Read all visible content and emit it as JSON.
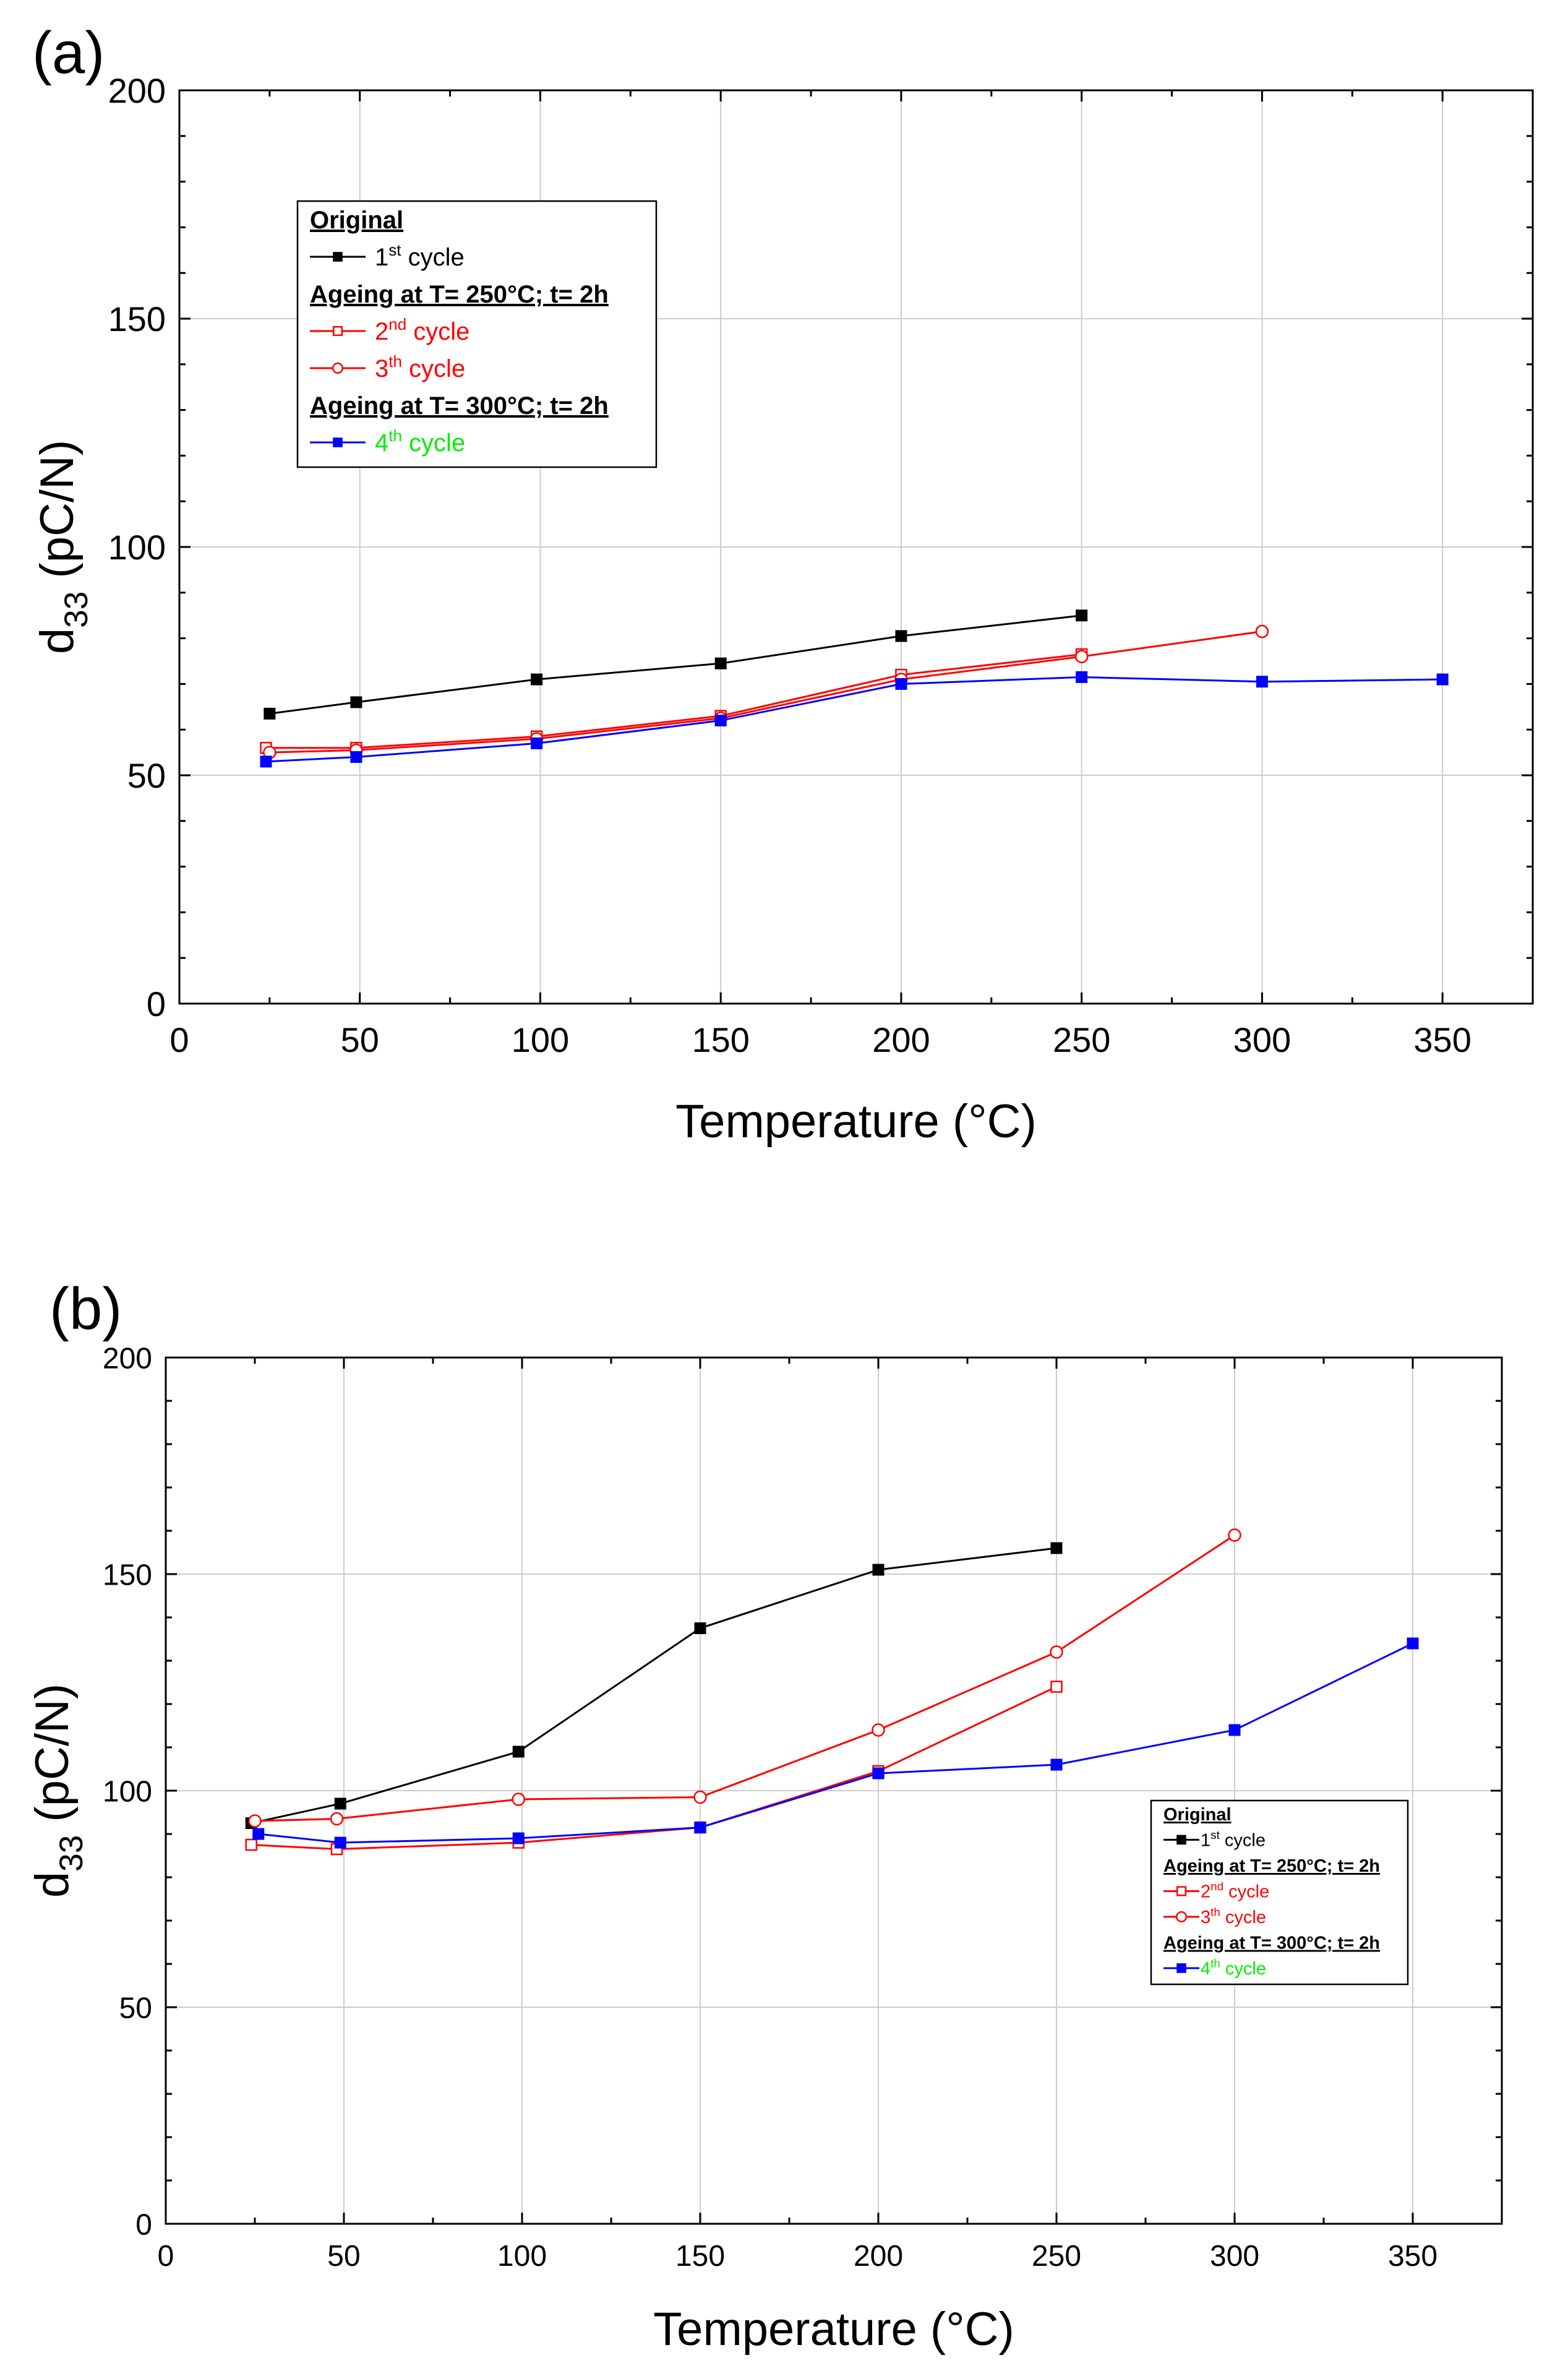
{
  "chart_data": [
    {
      "panel_label": "(a)",
      "type": "line",
      "xlabel": "Temperature (°C)",
      "ylabel": {
        "base": "d",
        "sub": "33",
        "rest": " (pC/N)"
      },
      "xlim": [
        0,
        375
      ],
      "ylim": [
        0,
        200
      ],
      "xticks": [
        0,
        50,
        100,
        150,
        200,
        250,
        300,
        350
      ],
      "yticks": [
        0,
        50,
        100,
        150,
        200
      ],
      "grid": true,
      "legend_position": "top-left",
      "legend": [
        {
          "heading": "Original"
        },
        {
          "series_index": 0,
          "label_main": "1",
          "label_sup": "st",
          "label_rest": " cycle"
        },
        {
          "heading": "Ageing at T= 250°C; t= 2h"
        },
        {
          "series_index": 1,
          "label_main": "2",
          "label_sup": "nd",
          "label_rest": " cycle"
        },
        {
          "series_index": 2,
          "label_main": "3",
          "label_sup": "th",
          "label_rest": " cycle"
        },
        {
          "heading": "Ageing at T= 300°C; t= 2h"
        },
        {
          "series_index": 3,
          "label_main": "4",
          "label_sup": "th",
          "label_rest": " cycle"
        }
      ],
      "series": [
        {
          "name": "1st cycle",
          "color": "#000000",
          "marker": "square-filled",
          "x": [
            25,
            49,
            99,
            150,
            200,
            250
          ],
          "y": [
            63.5,
            66,
            71,
            74.5,
            80.5,
            85
          ]
        },
        {
          "name": "2nd cycle",
          "color": "#ff0000",
          "marker": "square-open",
          "x": [
            24,
            49,
            99,
            150,
            200,
            250
          ],
          "y": [
            56,
            56,
            58.5,
            63,
            72,
            76.5
          ]
        },
        {
          "name": "3th cycle",
          "color": "#ff0000",
          "marker": "circle-open",
          "x": [
            25,
            49,
            99,
            150,
            200,
            250,
            300
          ],
          "y": [
            55,
            55.5,
            58,
            62.5,
            71,
            76,
            81.5
          ]
        },
        {
          "name": "4th cycle",
          "color": "#0000ff",
          "marker": "square-filled",
          "label_color": "#00ee00",
          "x": [
            24,
            49,
            99,
            150,
            200,
            250,
            300,
            350
          ],
          "y": [
            53,
            54,
            57,
            62,
            70,
            71.5,
            70.5,
            71
          ]
        }
      ]
    },
    {
      "panel_label": "(b)",
      "type": "line",
      "xlabel": "Temperature (°C)",
      "ylabel": {
        "base": "d",
        "sub": "33",
        "rest": " (pC/N)"
      },
      "xlim": [
        0,
        375
      ],
      "ylim": [
        0,
        200
      ],
      "xticks": [
        0,
        50,
        100,
        150,
        200,
        250,
        300,
        350
      ],
      "yticks": [
        0,
        50,
        100,
        150,
        200
      ],
      "grid": true,
      "legend_position": "center-right",
      "legend": [
        {
          "heading": "Original"
        },
        {
          "series_index": 0,
          "label_main": "1",
          "label_sup": "st",
          "label_rest": " cycle"
        },
        {
          "heading": "Ageing at T= 250°C; t= 2h"
        },
        {
          "series_index": 1,
          "label_main": "2",
          "label_sup": "nd",
          "label_rest": " cycle"
        },
        {
          "series_index": 2,
          "label_main": "3",
          "label_sup": "th",
          "label_rest": " cycle"
        },
        {
          "heading": "Ageing at T= 300°C; t= 2h"
        },
        {
          "series_index": 3,
          "label_main": "4",
          "label_sup": "th",
          "label_rest": " cycle"
        }
      ],
      "series": [
        {
          "name": "1st cycle",
          "color": "#000000",
          "marker": "square-filled",
          "x": [
            24,
            49,
            99,
            150,
            200,
            250
          ],
          "y": [
            92.5,
            97,
            109,
            137.5,
            151,
            156
          ]
        },
        {
          "name": "2nd cycle",
          "color": "#ff0000",
          "marker": "square-open",
          "x": [
            24,
            48,
            99,
            150,
            200,
            250
          ],
          "y": [
            87.5,
            86.5,
            88,
            91.5,
            104.5,
            124
          ]
        },
        {
          "name": "3th cycle",
          "color": "#ff0000",
          "marker": "circle-open",
          "x": [
            25,
            48,
            99,
            150,
            200,
            250,
            300
          ],
          "y": [
            93,
            93.5,
            98,
            98.5,
            114,
            132,
            159
          ]
        },
        {
          "name": "4th cycle",
          "color": "#0000ff",
          "marker": "square-filled",
          "label_color": "#00ee00",
          "x": [
            26,
            49,
            99,
            150,
            200,
            250,
            300,
            350
          ],
          "y": [
            90,
            88,
            89,
            91.5,
            104,
            106,
            114,
            134
          ]
        }
      ]
    }
  ]
}
